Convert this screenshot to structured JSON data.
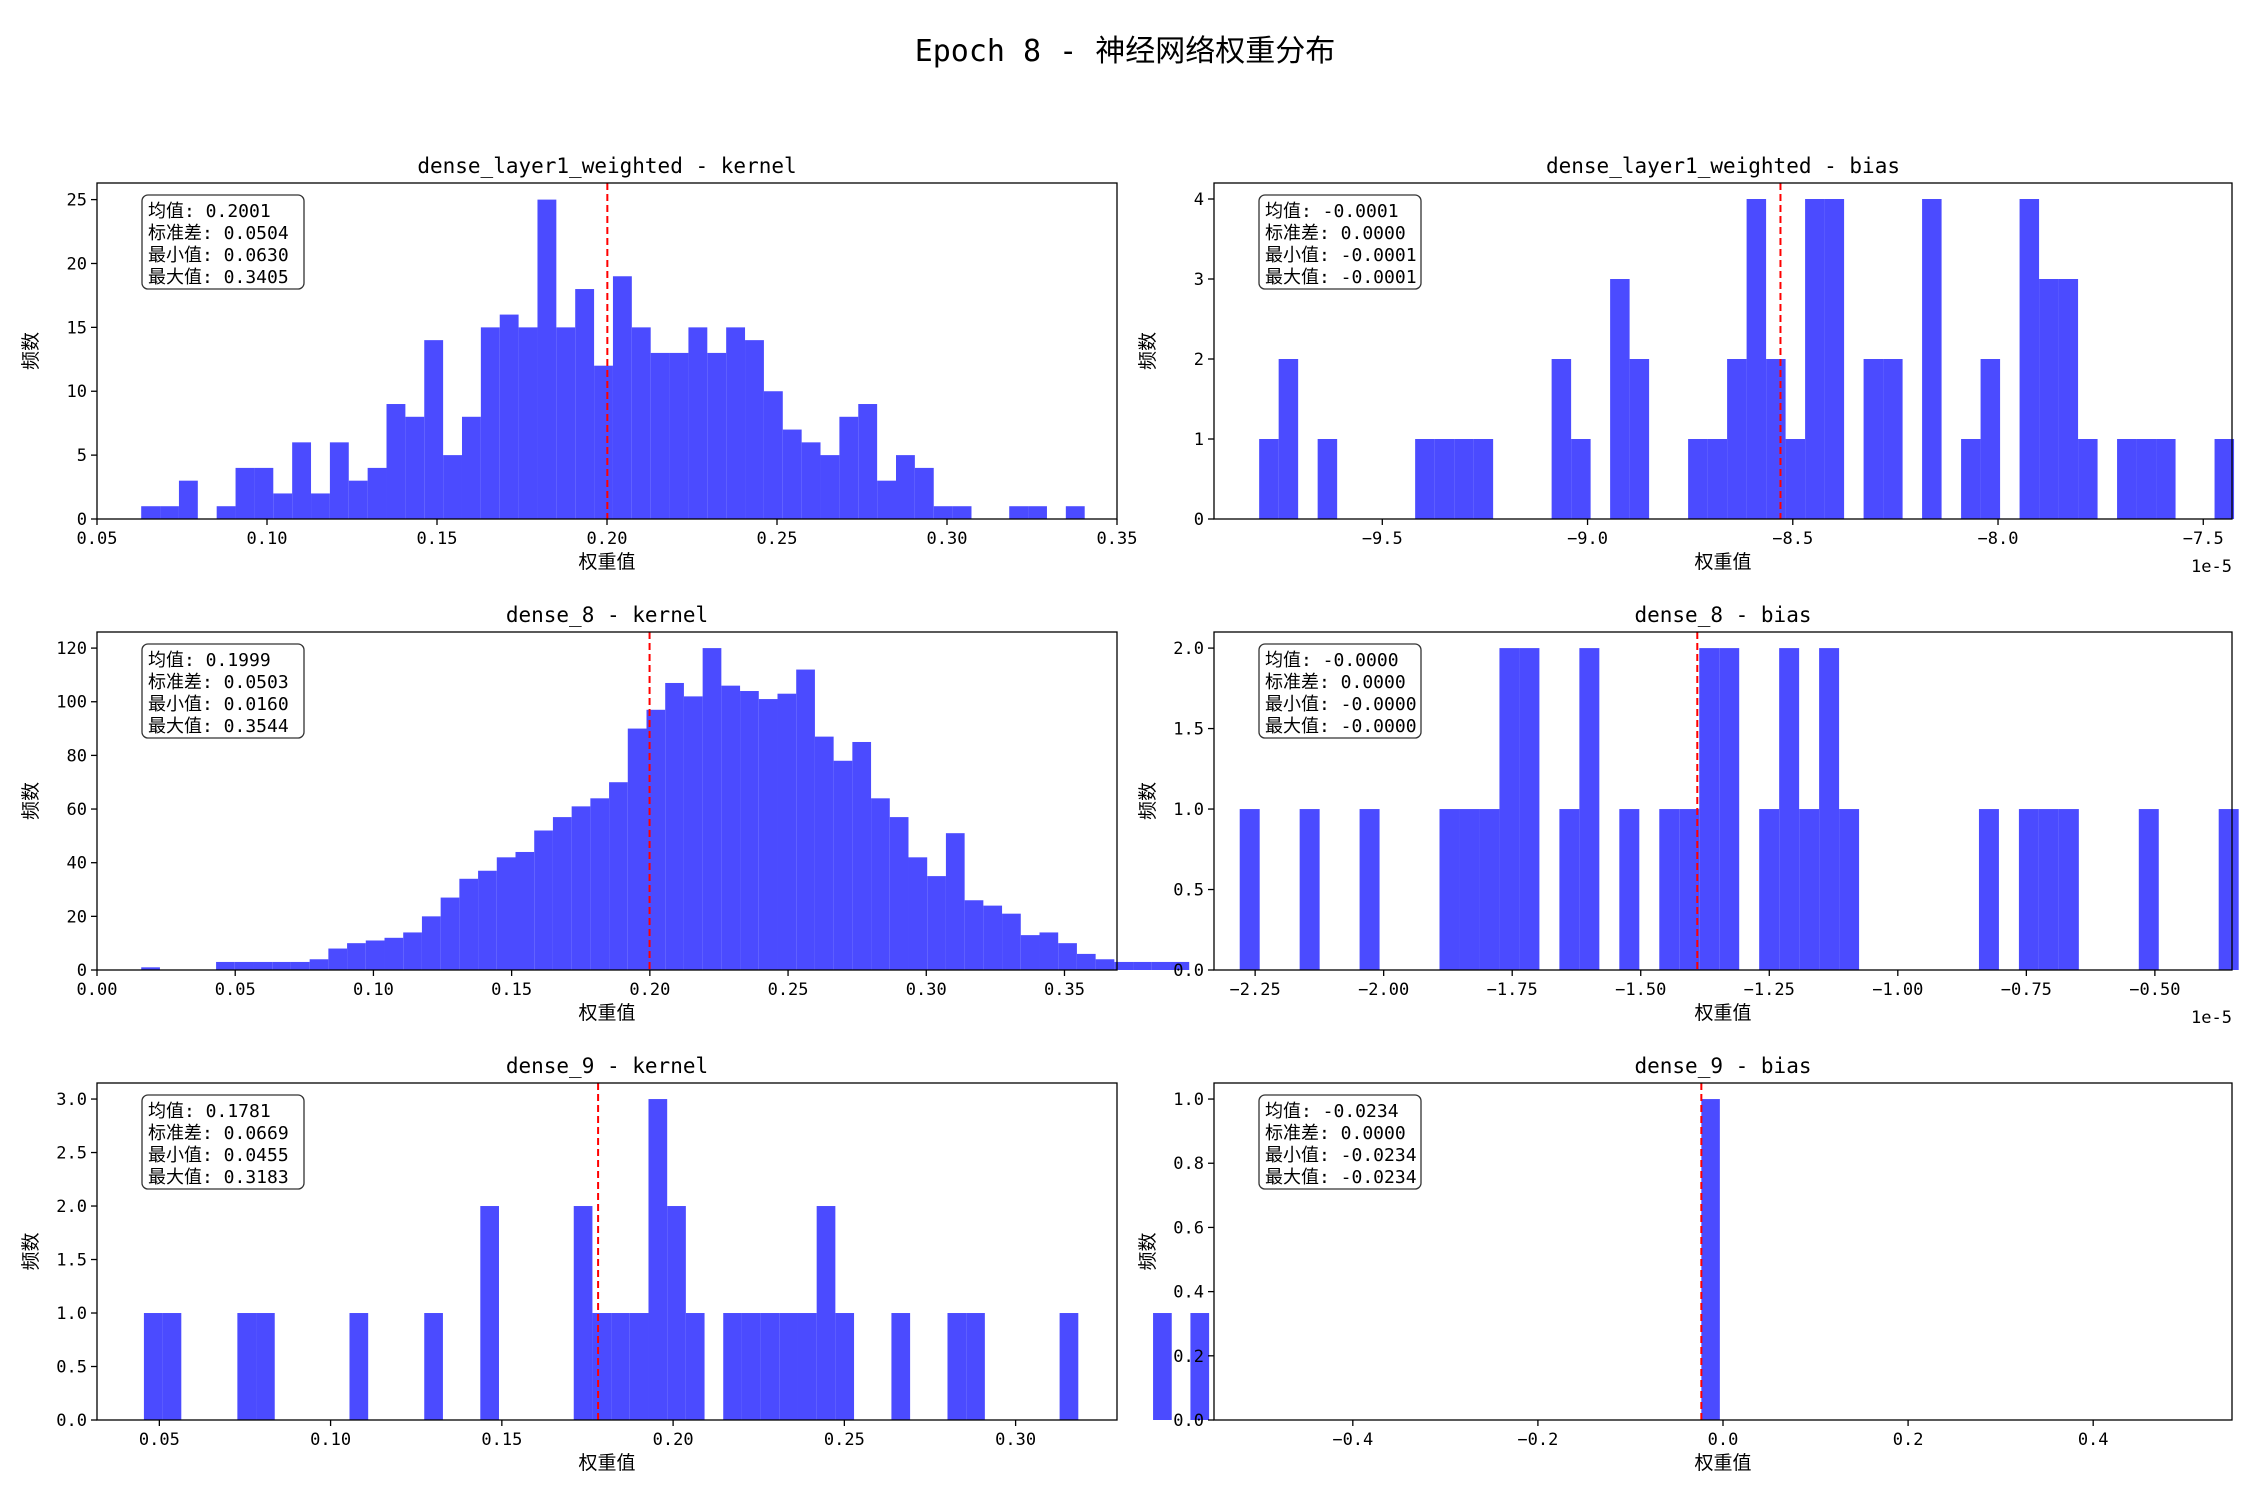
{
  "title": "Epoch 8 - 神经网络权重分布",
  "colors": {
    "bar": "#4b4bff",
    "mean_line": "#ff0000",
    "axis": "#000000"
  },
  "chart_data": [
    {
      "type": "bar",
      "title": "dense_layer1_weighted - kernel",
      "xlabel": "权重值",
      "ylabel": "频数",
      "xlim": [
        0.05,
        0.35
      ],
      "ylim": [
        0,
        26.3
      ],
      "xticks": [
        0.05,
        0.1,
        0.15,
        0.2,
        0.25,
        0.3,
        0.35
      ],
      "xtick_labels": [
        "0.05",
        "0.10",
        "0.15",
        "0.20",
        "0.25",
        "0.30",
        "0.35"
      ],
      "yticks": [
        0,
        5,
        10,
        15,
        20,
        25
      ],
      "ytick_labels": [
        "0",
        "5",
        "10",
        "15",
        "20",
        "25"
      ],
      "bin_start": 0.063,
      "bin_width": 0.00555,
      "values": [
        1,
        1,
        3,
        0,
        1,
        4,
        4,
        2,
        6,
        2,
        6,
        3,
        4,
        9,
        8,
        14,
        5,
        8,
        15,
        16,
        15,
        25,
        15,
        18,
        12,
        19,
        15,
        13,
        13,
        15,
        13,
        15,
        14,
        10,
        7,
        6,
        5,
        8,
        9,
        3,
        5,
        4,
        1,
        1,
        0,
        0,
        1,
        1,
        0,
        1
      ],
      "mean": 0.2001,
      "stats": [
        "均值: 0.2001",
        "标准差: 0.0504",
        "最小值: 0.0630",
        "最大值: 0.3405"
      ],
      "grid": false,
      "legend": "none"
    },
    {
      "type": "bar",
      "title": "dense_layer1_weighted - bias",
      "xlabel": "权重值",
      "ylabel": "频数",
      "x_offset_label": "1e-5",
      "xlim": [
        -9.91,
        -7.43
      ],
      "ylim": [
        0,
        4.2
      ],
      "xticks": [
        -9.5,
        -9.0,
        -8.5,
        -8.0,
        -7.5
      ],
      "xtick_labels": [
        "−9.5",
        "−9.0",
        "−8.5",
        "−8.0",
        "−7.5"
      ],
      "yticks": [
        0,
        1,
        2,
        3,
        4
      ],
      "ytick_labels": [
        "0",
        "1",
        "2",
        "3",
        "4"
      ],
      "bin_start": -9.8,
      "bin_width": 0.0475,
      "values": [
        1,
        2,
        0,
        1,
        0,
        0,
        0,
        0,
        1,
        1,
        1,
        1,
        0,
        0,
        0,
        2,
        1,
        0,
        3,
        2,
        0,
        0,
        1,
        1,
        2,
        4,
        2,
        1,
        4,
        4,
        0,
        2,
        2,
        0,
        4,
        0,
        1,
        2,
        0,
        4,
        3,
        3,
        1,
        0,
        1,
        1,
        1,
        0,
        0,
        1
      ],
      "mean": -8.53,
      "stats": [
        "均值: -0.0001",
        "标准差: 0.0000",
        "最小值: -0.0001",
        "最大值: -0.0001"
      ],
      "grid": false,
      "legend": "none"
    },
    {
      "type": "bar",
      "title": "dense_8 - kernel",
      "xlabel": "权重值",
      "ylabel": "频数",
      "xlim": [
        0.0,
        0.369
      ],
      "ylim": [
        0,
        126
      ],
      "xticks": [
        0.0,
        0.05,
        0.1,
        0.15,
        0.2,
        0.25,
        0.3,
        0.35
      ],
      "xtick_labels": [
        "0.00",
        "0.05",
        "0.10",
        "0.15",
        "0.20",
        "0.25",
        "0.30",
        "0.35"
      ],
      "yticks": [
        0,
        20,
        40,
        60,
        80,
        100,
        120
      ],
      "ytick_labels": [
        "0",
        "20",
        "40",
        "60",
        "80",
        "100",
        "120"
      ],
      "bin_start": 0.016,
      "bin_width": 0.00677,
      "values": [
        1,
        0,
        0,
        0,
        3,
        3,
        3,
        3,
        3,
        4,
        8,
        10,
        11,
        12,
        14,
        20,
        27,
        34,
        37,
        42,
        44,
        52,
        57,
        61,
        64,
        70,
        90,
        97,
        107,
        102,
        120,
        106,
        104,
        101,
        103,
        112,
        87,
        78,
        85,
        64,
        57,
        42,
        35,
        51,
        26,
        24,
        21,
        13,
        14,
        10,
        6,
        4,
        3,
        3,
        3,
        3
      ],
      "mean": 0.1999,
      "stats": [
        "均值: 0.1999",
        "标准差: 0.0503",
        "最小值: 0.0160",
        "最大值: 0.3544"
      ],
      "grid": false,
      "legend": "none"
    },
    {
      "type": "bar",
      "title": "dense_8 - bias",
      "xlabel": "权重值",
      "ylabel": "频数",
      "x_offset_label": "1e-5",
      "xlim": [
        -2.33,
        -0.35
      ],
      "ylim": [
        0,
        2.1
      ],
      "xticks": [
        -2.25,
        -2.0,
        -1.75,
        -1.5,
        -1.25,
        -1.0,
        -0.75,
        -0.5
      ],
      "xtick_labels": [
        "−2.25",
        "−2.00",
        "−1.75",
        "−1.50",
        "−1.25",
        "−1.00",
        "−0.75",
        "−0.50"
      ],
      "yticks": [
        0.0,
        0.5,
        1.0,
        1.5,
        2.0
      ],
      "ytick_labels": [
        "0.0",
        "0.5",
        "1.0",
        "1.5",
        "2.0"
      ],
      "bin_start": -2.28,
      "bin_width": 0.03886,
      "values": [
        1,
        0,
        0,
        1,
        0,
        0,
        1,
        0,
        0,
        0,
        1,
        1,
        1,
        2,
        2,
        0,
        1,
        2,
        0,
        1,
        0,
        1,
        1,
        2,
        2,
        0,
        1,
        2,
        1,
        2,
        1,
        0,
        0,
        0,
        0,
        0,
        0,
        1,
        0,
        1,
        1,
        1,
        0,
        0,
        0,
        1,
        0,
        0,
        0,
        1,
        0,
        0,
        0,
        0,
        1,
        1
      ],
      "mean": -1.39,
      "stats": [
        "均值: -0.0000",
        "标准差: 0.0000",
        "最小值: -0.0000",
        "最大值: -0.0000"
      ],
      "grid": false,
      "legend": "none"
    },
    {
      "type": "bar",
      "title": "dense_9 - kernel",
      "xlabel": "权重值",
      "ylabel": "频数",
      "xlim": [
        0.0318,
        0.3296
      ],
      "ylim": [
        0,
        3.15
      ],
      "xticks": [
        0.05,
        0.1,
        0.15,
        0.2,
        0.25,
        0.3
      ],
      "xtick_labels": [
        "0.05",
        "0.10",
        "0.15",
        "0.20",
        "0.25",
        "0.30"
      ],
      "yticks": [
        0.0,
        0.5,
        1.0,
        1.5,
        2.0,
        2.5,
        3.0
      ],
      "ytick_labels": [
        "0.0",
        "0.5",
        "1.0",
        "1.5",
        "2.0",
        "2.5",
        "3.0"
      ],
      "bin_start": 0.0455,
      "bin_width": 0.005456,
      "values": [
        1,
        1,
        0,
        0,
        0,
        1,
        1,
        0,
        0,
        0,
        0,
        1,
        0,
        0,
        0,
        1,
        0,
        0,
        2,
        0,
        0,
        0,
        0,
        2,
        1,
        1,
        1,
        3,
        2,
        1,
        0,
        1,
        1,
        1,
        1,
        1,
        2,
        1,
        0,
        0,
        1,
        0,
        0,
        1,
        1,
        0,
        0,
        0,
        0,
        1,
        0,
        0,
        0,
        0,
        1,
        0,
        1
      ],
      "mean": 0.1781,
      "stats": [
        "均值: 0.1781",
        "标准差: 0.0669",
        "最小值: 0.0455",
        "最大值: 0.3183"
      ],
      "grid": false,
      "legend": "none"
    },
    {
      "type": "bar",
      "title": "dense_9 - bias",
      "xlabel": "权重值",
      "ylabel": "频数",
      "xlim": [
        -0.55,
        0.55
      ],
      "ylim": [
        0,
        1.05
      ],
      "xticks": [
        -0.4,
        -0.2,
        0.0,
        0.2,
        0.4
      ],
      "xtick_labels": [
        "−0.4",
        "−0.2",
        "0.0",
        "0.2",
        "0.4"
      ],
      "yticks": [
        0.0,
        0.2,
        0.4,
        0.6,
        0.8,
        1.0
      ],
      "ytick_labels": [
        "0.0",
        "0.2",
        "0.4",
        "0.6",
        "0.8",
        "1.0"
      ],
      "bin_start": -0.0234,
      "bin_width": 0.02,
      "values": [
        1
      ],
      "mean": -0.0234,
      "stats": [
        "均值: -0.0234",
        "标准差: 0.0000",
        "最小值: -0.0234",
        "最大值: -0.0234"
      ],
      "grid": false,
      "legend": "none"
    }
  ]
}
